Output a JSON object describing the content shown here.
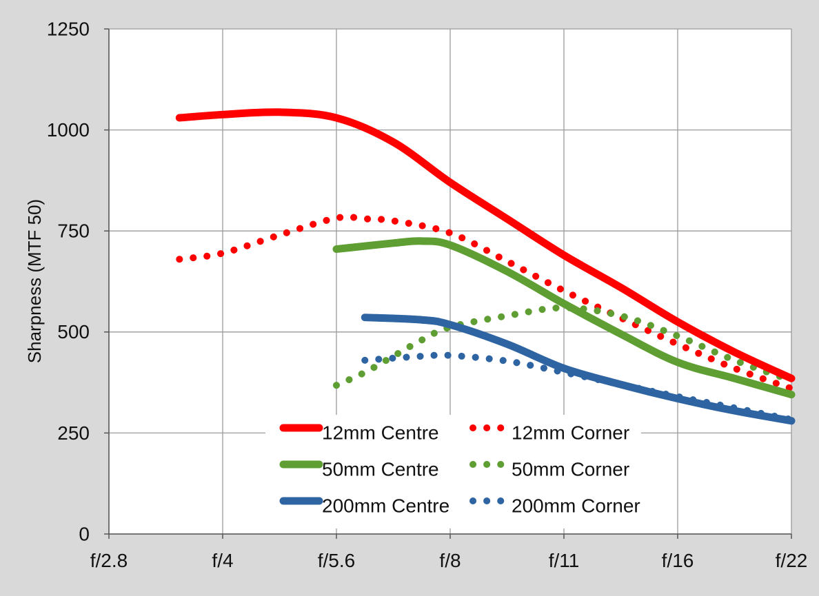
{
  "chart_data": {
    "type": "line",
    "title": "",
    "xlabel": "",
    "ylabel": "Sharpness  (MTF 50)",
    "categories": [
      "f/2.8",
      "f/4",
      "f/5.6",
      "f/8",
      "f/11",
      "f/16",
      "f/22"
    ],
    "ylim": [
      0,
      1250
    ],
    "yticks": [
      "0",
      "250",
      "500",
      "750",
      "1000",
      "1250"
    ],
    "grid": true,
    "legend_position": "bottom-center",
    "series": [
      {
        "name": "12mm Centre",
        "style": "solid",
        "color": "#ff0000",
        "points": [
          [
            0.62,
            1030
          ],
          [
            1.0,
            1038
          ],
          [
            1.5,
            1044
          ],
          [
            2.0,
            1030
          ],
          [
            2.5,
            970
          ],
          [
            3.0,
            870
          ],
          [
            3.5,
            780
          ],
          [
            4.0,
            690
          ],
          [
            4.5,
            610
          ],
          [
            5.0,
            525
          ],
          [
            5.5,
            450
          ],
          [
            6.0,
            385
          ]
        ]
      },
      {
        "name": "12mm Corner",
        "style": "dotted",
        "color": "#ff0000",
        "points": [
          [
            0.62,
            680
          ],
          [
            1.0,
            695
          ],
          [
            1.5,
            740
          ],
          [
            2.0,
            782
          ],
          [
            2.25,
            780
          ],
          [
            2.5,
            775
          ],
          [
            3.0,
            745
          ],
          [
            3.5,
            675
          ],
          [
            4.0,
            602
          ],
          [
            4.5,
            535
          ],
          [
            5.0,
            470
          ],
          [
            5.5,
            410
          ],
          [
            6.0,
            360
          ]
        ]
      },
      {
        "name": "50mm Centre",
        "style": "solid",
        "color": "#5e9e32",
        "points": [
          [
            2.0,
            705
          ],
          [
            2.5,
            720
          ],
          [
            2.75,
            725
          ],
          [
            3.0,
            715
          ],
          [
            3.5,
            650
          ],
          [
            4.0,
            570
          ],
          [
            4.5,
            495
          ],
          [
            5.0,
            425
          ],
          [
            5.5,
            385
          ],
          [
            6.0,
            345
          ]
        ]
      },
      {
        "name": "50mm Corner",
        "style": "dotted",
        "color": "#5e9e32",
        "points": [
          [
            2.0,
            368
          ],
          [
            2.25,
            400
          ],
          [
            2.5,
            440
          ],
          [
            2.75,
            480
          ],
          [
            3.0,
            512
          ],
          [
            3.5,
            540
          ],
          [
            4.0,
            560
          ],
          [
            4.5,
            540
          ],
          [
            5.0,
            490
          ],
          [
            5.5,
            430
          ],
          [
            6.0,
            380
          ]
        ]
      },
      {
        "name": "200mm Centre",
        "style": "solid",
        "color": "#2e64a2",
        "points": [
          [
            2.25,
            536
          ],
          [
            2.75,
            530
          ],
          [
            3.0,
            518
          ],
          [
            3.5,
            470
          ],
          [
            4.0,
            410
          ],
          [
            4.5,
            370
          ],
          [
            5.0,
            335
          ],
          [
            5.5,
            305
          ],
          [
            6.0,
            280
          ]
        ]
      },
      {
        "name": "200mm Corner",
        "style": "dotted",
        "color": "#2e64a2",
        "points": [
          [
            2.25,
            430
          ],
          [
            2.75,
            440
          ],
          [
            3.0,
            442
          ],
          [
            3.5,
            428
          ],
          [
            4.0,
            400
          ],
          [
            4.5,
            370
          ],
          [
            5.0,
            340
          ],
          [
            5.5,
            312
          ],
          [
            6.0,
            283
          ]
        ]
      }
    ]
  }
}
